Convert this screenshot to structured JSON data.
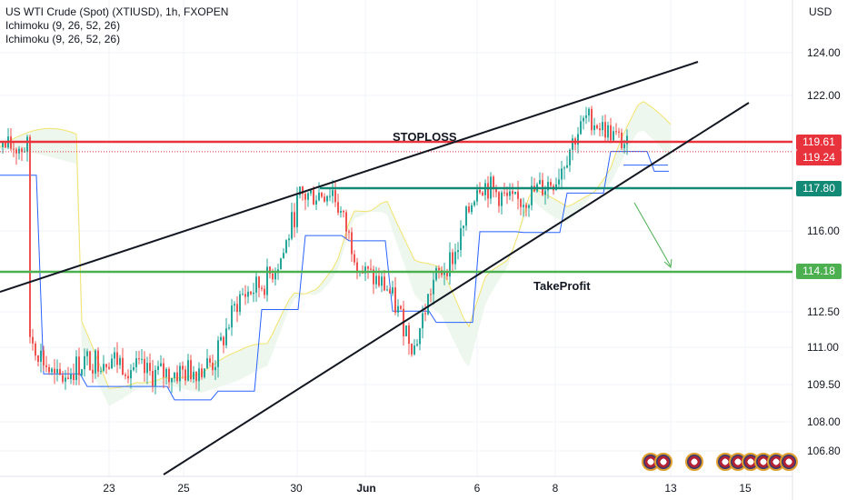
{
  "legend": {
    "title": "US WTI Crude (Spot) (XTIUSD), 1h, FXOPEN",
    "indicator1": "Ichimoku (9, 26, 52, 26)",
    "indicator2": "Ichimoku (9, 26, 52, 26)"
  },
  "annotations": {
    "stoploss": "STOPLOSS",
    "takeprofit": "TakeProfit"
  },
  "price_labels": {
    "stoploss": "119.61",
    "current": "119.24",
    "entry": "117.80",
    "takeprofit": "114.18"
  },
  "colors": {
    "stoploss": "#e8323c",
    "entry": "#138a76",
    "takeprofit": "#4caf50",
    "up": "#26a69a",
    "down": "#ef5350",
    "kijun": "#2962ff",
    "senkou": "#f3e36b"
  },
  "chart_data": {
    "type": "candlestick",
    "title": "US WTI Crude (Spot) (XTIUSD), 1h, FXOPEN",
    "currency": "USD",
    "y_ticks": [
      "124.00",
      "122.00",
      "119.61",
      "119.24",
      "117.80",
      "116.00",
      "114.18",
      "112.50",
      "111.00",
      "109.50",
      "108.00",
      "106.80"
    ],
    "x_ticks": [
      "23",
      "25",
      "30",
      "Jun",
      "6",
      "8",
      "13",
      "15"
    ],
    "close_path": [
      [
        "May 20",
        111.6
      ],
      [
        "May 21",
        109.6
      ],
      [
        "May 22",
        110.4
      ],
      [
        "May 23",
        110.6
      ],
      [
        "May 24",
        109.9
      ],
      [
        "May 25",
        110.0
      ],
      [
        "May 26",
        110.4
      ],
      [
        "May 27",
        113.1
      ],
      [
        "May 28",
        113.7
      ],
      [
        "May 29",
        114.9
      ],
      [
        "May 30",
        117.4
      ],
      [
        "May 31",
        117.7
      ],
      [
        "Jun 1",
        114.2
      ],
      [
        "Jun 2",
        113.5
      ],
      [
        "Jun 3",
        111.0
      ],
      [
        "Jun 4",
        113.7
      ],
      [
        "Jun 5",
        115.0
      ],
      [
        "Jun 6",
        118.1
      ],
      [
        "Jun 7",
        117.1
      ],
      [
        "Jun 8",
        118.2
      ],
      [
        "Jun 9",
        120.9
      ],
      [
        "Jun 10",
        119.4
      ]
    ],
    "horizontal_levels": [
      {
        "label": "STOPLOSS",
        "value": 119.61
      },
      {
        "label": "current",
        "value": 119.24
      },
      {
        "value": 117.8
      },
      {
        "label": "TakeProfit",
        "value": 114.18
      }
    ],
    "trendlines": [
      {
        "name": "upper",
        "from": [
          "May 18",
          113.5
        ],
        "to": [
          "Jun 13",
          123.6
        ]
      },
      {
        "name": "lower",
        "from": [
          "May 24",
          106.8
        ],
        "to": [
          "Jun 15",
          121.8
        ]
      }
    ],
    "projection_arrow": {
      "from": [
        "Jun 11",
        117.2
      ],
      "to": [
        "Jun 13",
        114.6
      ]
    }
  }
}
